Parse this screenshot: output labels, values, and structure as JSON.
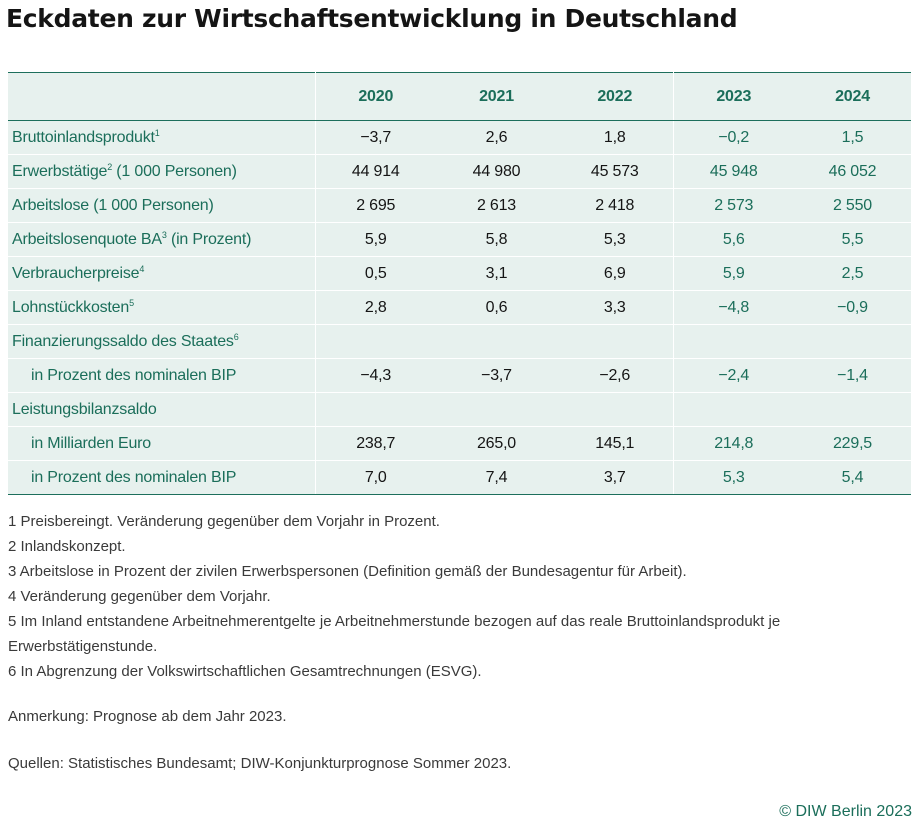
{
  "title": "Eckdaten zur Wirtschaftsentwicklung in Deutschland",
  "table": {
    "headers": [
      "",
      "2020",
      "2021",
      "2022",
      "2023",
      "2024"
    ],
    "rows": [
      {
        "label": "Bruttoinlandsprodukt",
        "sup": "1",
        "values": [
          "−3,7",
          "2,6",
          "1,8",
          "−0,2",
          "1,5"
        ]
      },
      {
        "label": "Erwerbstätige",
        "sup": "2",
        "label_suffix": " (1 000 Personen)",
        "values": [
          "44 914",
          "44 980",
          "45 573",
          "45 948",
          "46 052"
        ]
      },
      {
        "label": "Arbeitslose (1 000 Personen)",
        "values": [
          "2 695",
          "2 613",
          "2 418",
          "2 573",
          "2 550"
        ]
      },
      {
        "label": "Arbeitslosenquote BA",
        "sup": "3",
        "label_suffix": " (in Prozent)",
        "values": [
          "5,9",
          "5,8",
          "5,3",
          "5,6",
          "5,5"
        ]
      },
      {
        "label": "Verbraucherpreise",
        "sup": "4",
        "values": [
          "0,5",
          "3,1",
          "6,9",
          "5,9",
          "2,5"
        ]
      },
      {
        "label": "Lohnstückkosten",
        "sup": "5",
        "values": [
          "2,8",
          "0,6",
          "3,3",
          "−4,8",
          "−0,9"
        ]
      },
      {
        "label": "Finanzierungssaldo des Staates",
        "sup": "6",
        "values": [
          "",
          "",
          "",
          "",
          ""
        ]
      },
      {
        "label": "in Prozent des nominalen BIP",
        "values": [
          "−4,3",
          "−3,7",
          "−2,6",
          "−2,4",
          "−1,4"
        ]
      },
      {
        "label": "Leistungsbilanzsaldo",
        "values": [
          "",
          "",
          "",
          "",
          ""
        ]
      },
      {
        "label": "in Milliarden Euro",
        "values": [
          "238,7",
          "265,0",
          "145,1",
          "214,8",
          "229,5"
        ]
      },
      {
        "label": "in Prozent des nominalen BIP",
        "values": [
          "7,0",
          "7,4",
          "3,7",
          "5,3",
          "5,4"
        ]
      }
    ]
  },
  "footnotes": [
    "1  Preisbereingt. Veränderung gegenüber dem Vorjahr in Prozent.",
    "2  Inlandskonzept.",
    "3  Arbeitslose in Prozent der zivilen Erwerbspersonen (Definition gemäß der Bundesagentur für Arbeit).",
    "4  Veränderung gegenüber dem Vorjahr.",
    "5  Im Inland entstandene Arbeitnehmerentgelte je Arbeitnehmerstunde bezogen auf das reale Bruttoinlandsprodukt je Erwerbstätigenstunde.",
    "6  In Abgrenzung der Volkswirtschaftlichen Gesamtrechnungen (ESVG)."
  ],
  "remark": "Anmerkung: Prognose ab dem Jahr 2023.",
  "sources": "Quellen: Statistisches Bundesamt; DIW-Konjunkturprognose Sommer 2023.",
  "copyright": "© DIW Berlin 2023",
  "colors": {
    "accent": "#1b6e5a",
    "table_bg": "#e7f1ee"
  }
}
